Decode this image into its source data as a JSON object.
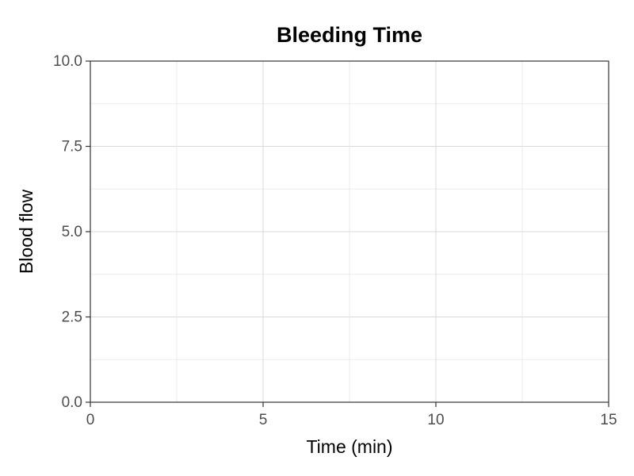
{
  "chart_data": {
    "type": "line",
    "title": "Bleeding Time",
    "x_label": "Time (min)",
    "y_label": "Blood flow",
    "xlim": [
      0,
      15
    ],
    "xticks": [
      0,
      5,
      10,
      15
    ],
    "ylim": [
      0,
      10
    ],
    "yticks": [
      {
        "value": 0,
        "label": "0.0"
      },
      2.5,
      {
        "value": 5,
        "label": "5.0"
      },
      7.5,
      {
        "value": 10,
        "label": "10.0"
      }
    ],
    "x_minor_ticks": [
      2.5,
      7.5,
      12.5
    ],
    "y_minor_ticks": [
      1.25,
      3.75,
      6.25,
      8.75
    ],
    "grid": true,
    "series": []
  }
}
